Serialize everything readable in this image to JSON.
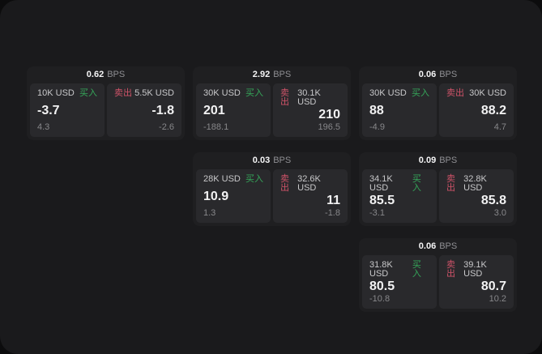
{
  "labels": {
    "bps_unit": "BPS",
    "buy": "买入",
    "sell": "卖出"
  },
  "colors": {
    "buy": "#35a75a",
    "sell": "#cf5368",
    "background": "#1a1a1c",
    "card": "#1f1f21",
    "panel": "#29292c"
  },
  "cards": [
    {
      "col": 1,
      "row": 1,
      "bps": "0.62",
      "buy": {
        "amount": "10K USD",
        "value": "-3.7",
        "sub": "4.3"
      },
      "sell": {
        "amount": "5.5K USD",
        "value": "-1.8",
        "sub": "-2.6"
      }
    },
    {
      "col": 2,
      "row": 1,
      "bps": "2.92",
      "buy": {
        "amount": "30K USD",
        "value": "201",
        "sub": "-188.1"
      },
      "sell": {
        "amount": "30.1K USD",
        "value": "210",
        "sub": "196.5"
      }
    },
    {
      "col": 3,
      "row": 1,
      "bps": "0.06",
      "buy": {
        "amount": "30K USD",
        "value": "88",
        "sub": "-4.9"
      },
      "sell": {
        "amount": "30K USD",
        "value": "88.2",
        "sub": "4.7"
      }
    },
    {
      "col": 2,
      "row": 2,
      "bps": "0.03",
      "buy": {
        "amount": "28K USD",
        "value": "10.9",
        "sub": "1.3"
      },
      "sell": {
        "amount": "32.6K USD",
        "value": "11",
        "sub": "-1.8"
      }
    },
    {
      "col": 3,
      "row": 2,
      "bps": "0.09",
      "buy": {
        "amount": "34.1K USD",
        "value": "85.5",
        "sub": "-3.1"
      },
      "sell": {
        "amount": "32.8K USD",
        "value": "85.8",
        "sub": "3.0"
      }
    },
    {
      "col": 3,
      "row": 3,
      "bps": "0.06",
      "buy": {
        "amount": "31.8K USD",
        "value": "80.5",
        "sub": "-10.8"
      },
      "sell": {
        "amount": "39.1K USD",
        "value": "80.7",
        "sub": "10.2"
      }
    }
  ]
}
